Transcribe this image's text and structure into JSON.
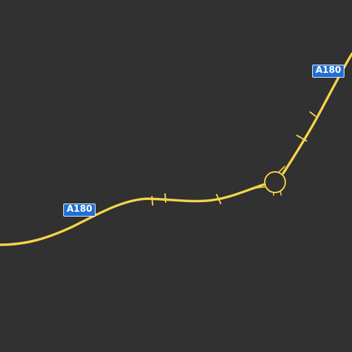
{
  "map": {
    "background_color": "#313131",
    "road_color": "#f7d34a",
    "road_shields": [
      {
        "label": "A180",
        "shield_color": "#1f6fd6"
      },
      {
        "label": "A180",
        "shield_color": "#1f6fd6"
      }
    ]
  }
}
